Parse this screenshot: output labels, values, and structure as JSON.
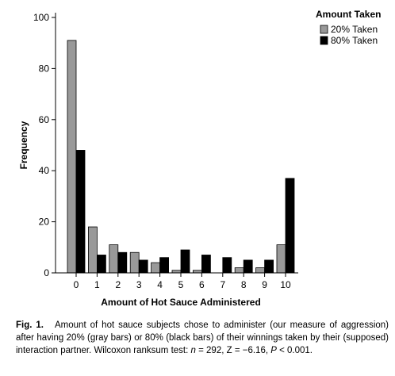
{
  "chart_data": {
    "type": "bar",
    "title": "",
    "xlabel": "Amount of Hot Sauce Administered",
    "ylabel": "Frequency",
    "categories": [
      "0",
      "1",
      "2",
      "3",
      "4",
      "5",
      "6",
      "7",
      "8",
      "9",
      "10"
    ],
    "ylim": [
      0,
      100
    ],
    "yticks": [
      "0",
      "20",
      "40",
      "60",
      "80",
      "100"
    ],
    "legend": {
      "title": "Amount Taken",
      "placement": "top-right"
    },
    "series": [
      {
        "name": "20% Taken",
        "color": "#999999",
        "values": [
          91,
          18,
          11,
          8,
          4,
          1,
          1,
          0,
          2,
          2,
          11
        ]
      },
      {
        "name": "80% Taken",
        "color": "#000000",
        "values": [
          48,
          7,
          8,
          5,
          6,
          9,
          7,
          6,
          5,
          5,
          37
        ]
      }
    ],
    "grid": false
  },
  "caption": {
    "label": "Fig. 1.",
    "text_part1": "Amount of hot sauce subjects chose to administer (our measure of aggression) after having 20% (gray bars) or 80% (black bars) of their winnings taken by their (supposed) interaction partner. Wilcoxon ranksum test: ",
    "n_symbol": "n",
    "n_value": " = 292, Z = −6.16, ",
    "p_symbol": "P",
    "p_value": " < 0.001."
  }
}
